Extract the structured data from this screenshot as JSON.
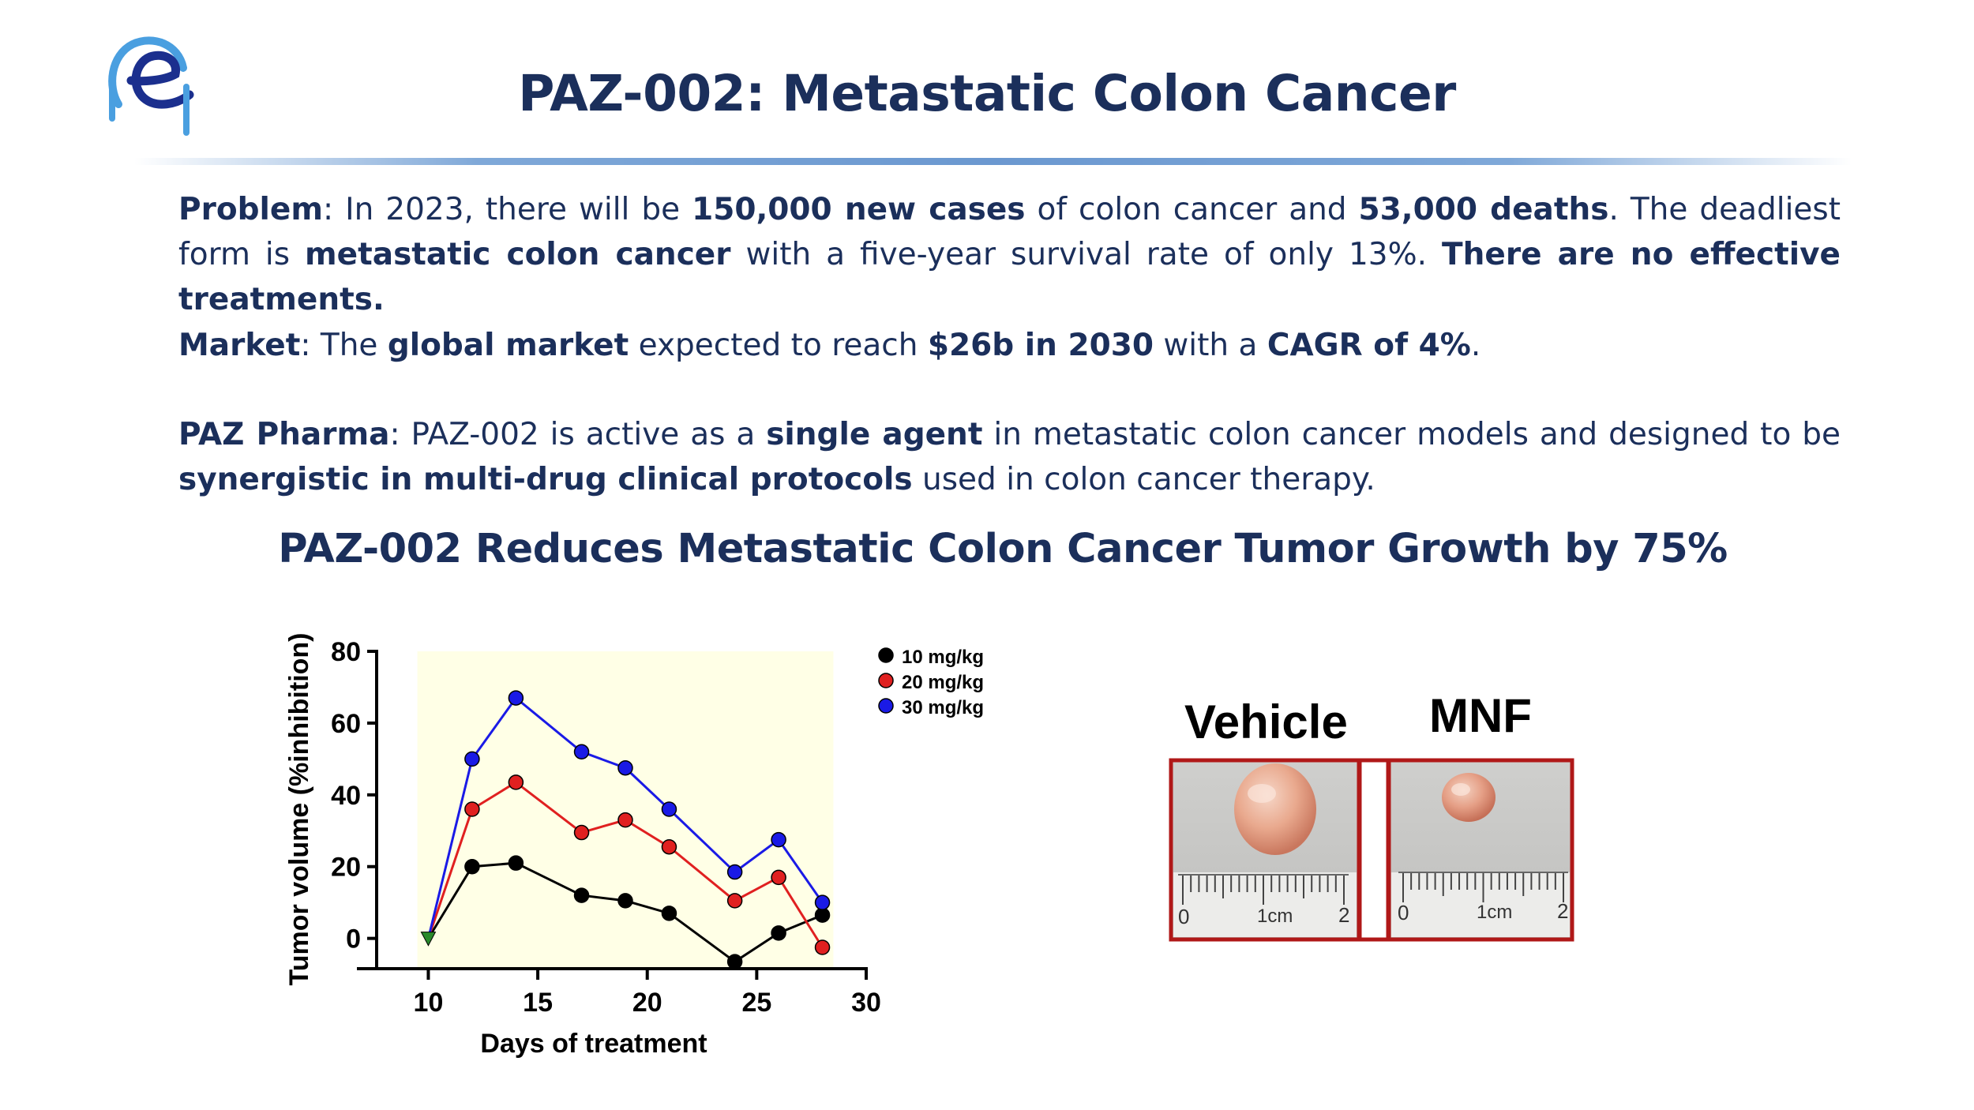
{
  "header": {
    "title": "PAZ-002: Metastatic Colon Cancer",
    "logo_icon": "paz-pharma-logo-icon"
  },
  "problem": {
    "label": "Problem",
    "t1": ": In 2023, there will be ",
    "b1": "150,000 new cases",
    "t2": " of colon cancer and ",
    "b2": "53,000 deaths",
    "t3": ".  The deadliest form is ",
    "b3": "metastatic colon cancer",
    "t4": " with a five-year survival rate of only 13%. ",
    "b4": "There are no effective treatments."
  },
  "market": {
    "label": "Market",
    "t1": ": The ",
    "b1": "global market",
    "t2": " expected to reach ",
    "b2": "$26b in 2030",
    "t3": " with a ",
    "b3": "CAGR of 4%",
    "t4": "."
  },
  "paz": {
    "label": "PAZ Pharma",
    "t1": ": PAZ-002 is active as a ",
    "b1": "single agent",
    "t2": " in metastatic colon cancer models and designed to be ",
    "b2": "synergistic in multi-drug clinical protocols",
    "t3": " used in colon cancer therapy."
  },
  "subtitle": "PAZ-002 Reduces Metastatic Colon Cancer Tumor Growth by 75%",
  "chart_data": {
    "type": "line",
    "xlabel": "Days of treatment",
    "ylabel": "Tumor volume (%inhibition)",
    "xlim": [
      8,
      30
    ],
    "ylim": [
      -8,
      80
    ],
    "xticks": [
      10,
      15,
      20,
      25,
      30
    ],
    "yticks": [
      0,
      20,
      40,
      60,
      80
    ],
    "grid": false,
    "legend_position": "top-right",
    "plot_background": "#ffffe6",
    "x": [
      12,
      14,
      17,
      19,
      21,
      24,
      26,
      28
    ],
    "start_point": {
      "x": 10,
      "y": 0,
      "color": "#2a8a2a"
    },
    "series": [
      {
        "name": "10 mg/kg",
        "color": "#000000",
        "values": [
          20,
          21,
          12,
          10.5,
          7,
          -6.5,
          1.5,
          6.5
        ]
      },
      {
        "name": "20 mg/kg",
        "color": "#e02020",
        "values": [
          36,
          43.5,
          29.5,
          33,
          25.5,
          10.5,
          17,
          -2.5
        ]
      },
      {
        "name": "30 mg/kg",
        "color": "#1a1ae6",
        "values": [
          50,
          67,
          52,
          47.5,
          36,
          18.5,
          27.5,
          10
        ]
      }
    ]
  },
  "photos": {
    "vehicle_label": "Vehicle",
    "mnf_label": "MNF",
    "ruler_zero": "0",
    "ruler_cm": "1cm",
    "ruler_two": "2",
    "frame_color": "#b01818"
  }
}
